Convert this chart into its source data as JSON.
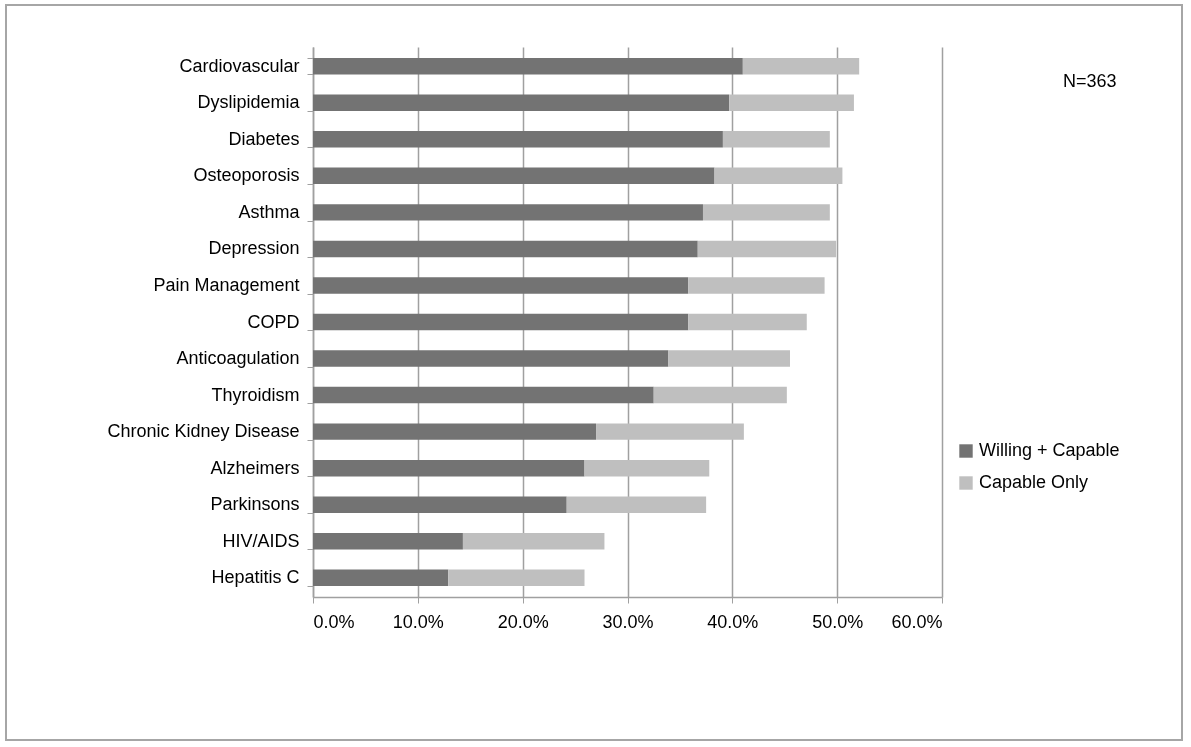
{
  "chart_data": {
    "type": "bar",
    "orientation": "horizontal",
    "stacked": true,
    "categories": [
      "Cardiovascular",
      "Dyslipidemia",
      "Diabetes",
      "Osteoporosis",
      "Asthma",
      "Depression",
      "Pain Management",
      "COPD",
      "Anticoagulation",
      "Thyroidism",
      "Chronic Kidney Disease",
      "Alzheimers",
      "Parkinsons",
      "HIV/AIDS",
      "Hepatitis C"
    ],
    "series": [
      {
        "name": "Willing + Capable",
        "color": "#737373",
        "values": [
          41.0,
          39.7,
          39.1,
          38.3,
          37.2,
          36.7,
          35.8,
          35.8,
          33.9,
          32.5,
          27.0,
          25.9,
          24.2,
          14.3,
          12.9
        ]
      },
      {
        "name": "Capable Only",
        "color": "#bfbfbf",
        "values": [
          11.1,
          11.9,
          10.2,
          12.2,
          12.1,
          13.2,
          13.0,
          11.3,
          11.6,
          12.7,
          14.1,
          11.9,
          13.3,
          13.5,
          13.0
        ]
      }
    ],
    "xlim": [
      0,
      60
    ],
    "xticks": [
      {
        "value": 0,
        "label": "0.0%"
      },
      {
        "value": 10,
        "label": "10.0%"
      },
      {
        "value": 20,
        "label": "20.0%"
      },
      {
        "value": 30,
        "label": "30.0%"
      },
      {
        "value": 40,
        "label": "40.0%"
      },
      {
        "value": 50,
        "label": "50.0%"
      },
      {
        "value": 60,
        "label": "60.0%"
      }
    ],
    "grid": "x",
    "legend": "right",
    "annotations": [
      "N=363"
    ]
  }
}
